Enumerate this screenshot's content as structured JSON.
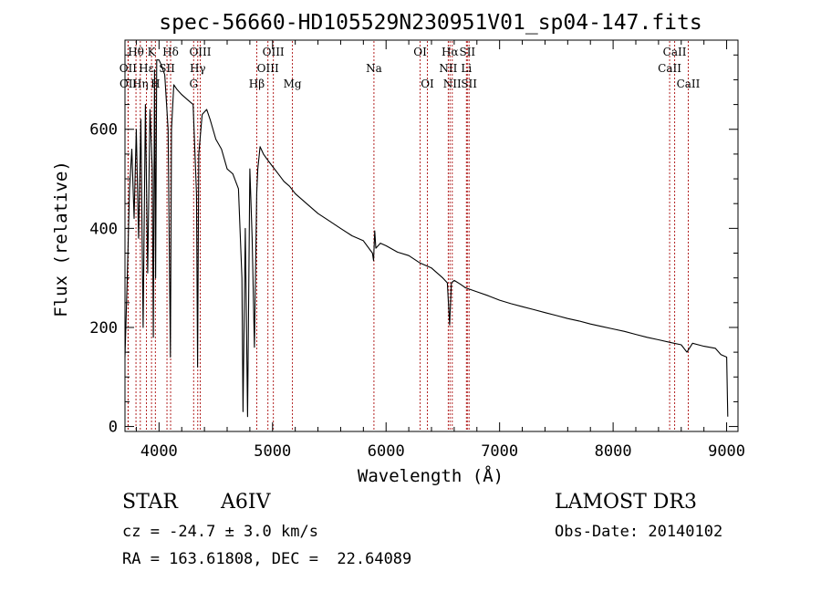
{
  "chart_data": {
    "type": "line",
    "title": "spec-56660-HD105529N230951V01_sp04-147.fits",
    "xlabel": "Wavelength (Å)",
    "ylabel": "Flux (relative)",
    "xlim": [
      3700,
      9100
    ],
    "ylim": [
      -10,
      780
    ],
    "xticks": [
      4000,
      5000,
      6000,
      7000,
      8000,
      9000
    ],
    "yticks": [
      0,
      200,
      400,
      600
    ],
    "grid": false,
    "series": [
      {
        "name": "spectrum",
        "color": "#000000",
        "x": [
          3700,
          3720,
          3740,
          3760,
          3780,
          3800,
          3820,
          3840,
          3860,
          3880,
          3900,
          3920,
          3940,
          3950,
          3960,
          3970,
          3980,
          4000,
          4020,
          4050,
          4080,
          4100,
          4110,
          4130,
          4160,
          4200,
          4250,
          4300,
          4330,
          4340,
          4350,
          4380,
          4420,
          4450,
          4500,
          4550,
          4600,
          4650,
          4700,
          4730,
          4740,
          4760,
          4780,
          4800,
          4820,
          4840,
          4860,
          4870,
          4890,
          4920,
          4950,
          5000,
          5050,
          5100,
          5150,
          5200,
          5300,
          5400,
          5500,
          5600,
          5700,
          5800,
          5880,
          5890,
          5900,
          5910,
          5950,
          6000,
          6100,
          6200,
          6300,
          6400,
          6500,
          6540,
          6560,
          6575,
          6600,
          6650,
          6700,
          6800,
          6900,
          7000,
          7100,
          7200,
          7300,
          7400,
          7500,
          7600,
          7700,
          7800,
          7900,
          8000,
          8100,
          8200,
          8300,
          8400,
          8500,
          8600,
          8650,
          8700,
          8800,
          8900,
          8950,
          9000,
          9010
        ],
        "values": [
          140,
          300,
          480,
          560,
          420,
          600,
          380,
          620,
          200,
          650,
          310,
          640,
          520,
          180,
          720,
          300,
          740,
          740,
          730,
          710,
          600,
          140,
          600,
          690,
          680,
          670,
          660,
          650,
          470,
          120,
          550,
          630,
          640,
          620,
          580,
          560,
          520,
          510,
          480,
          300,
          30,
          400,
          20,
          520,
          380,
          160,
          470,
          520,
          565,
          550,
          540,
          525,
          510,
          495,
          485,
          470,
          450,
          430,
          415,
          400,
          385,
          375,
          350,
          335,
          395,
          360,
          370,
          365,
          352,
          345,
          330,
          320,
          300,
          290,
          205,
          290,
          295,
          288,
          280,
          272,
          264,
          255,
          248,
          242,
          236,
          230,
          224,
          218,
          213,
          207,
          202,
          197,
          192,
          186,
          180,
          175,
          170,
          165,
          150,
          168,
          162,
          158,
          145,
          140,
          20
        ]
      }
    ],
    "lines": [
      {
        "label": "Hθ",
        "x": 3797,
        "row": 1
      },
      {
        "label": "OII",
        "x": 3727,
        "row": 2
      },
      {
        "label": "OII",
        "x": 3729,
        "row": 3
      },
      {
        "label": "Hη",
        "x": 3835,
        "row": 3
      },
      {
        "label": "K",
        "x": 3934,
        "row": 1
      },
      {
        "label": "Hε",
        "x": 3889,
        "row": 2
      },
      {
        "label": "H",
        "x": 3968,
        "row": 3
      },
      {
        "label": "SII",
        "x": 4070,
        "row": 2
      },
      {
        "label": "Hδ",
        "x": 4102,
        "row": 1
      },
      {
        "label": "G",
        "x": 4305,
        "row": 3
      },
      {
        "label": "OIII",
        "x": 4363,
        "row": 1
      },
      {
        "label": "Hγ",
        "x": 4341,
        "row": 2
      },
      {
        "label": "Hβ",
        "x": 4861,
        "row": 3
      },
      {
        "label": "OIII",
        "x": 4959,
        "row": 2
      },
      {
        "label": "OIII",
        "x": 5007,
        "row": 1
      },
      {
        "label": "Mg",
        "x": 5175,
        "row": 3
      },
      {
        "label": "Na",
        "x": 5893,
        "row": 2
      },
      {
        "label": "OI",
        "x": 6300,
        "row": 1
      },
      {
        "label": "OI",
        "x": 6364,
        "row": 3
      },
      {
        "label": "Hα",
        "x": 6563,
        "row": 1
      },
      {
        "label": "NII",
        "x": 6548,
        "row": 2
      },
      {
        "label": "NII",
        "x": 6583,
        "row": 3
      },
      {
        "label": "SII",
        "x": 6716,
        "row": 1
      },
      {
        "label": "SII",
        "x": 6731,
        "row": 3
      },
      {
        "label": "Li",
        "x": 6708,
        "row": 2
      },
      {
        "label": "CaII",
        "x": 8542,
        "row": 1
      },
      {
        "label": "CaII",
        "x": 8498,
        "row": 2
      },
      {
        "label": "CaII",
        "x": 8662,
        "row": 3
      }
    ]
  },
  "footer": {
    "object_type": "STAR",
    "subclass": "A6IV",
    "survey": "LAMOST DR3",
    "cz": "cz = -24.7 ± 3.0 km/s",
    "obs_date": "Obs-Date: 20140102",
    "coords": "RA = 163.61808, DEC =  22.64089"
  },
  "colors": {
    "line_marker": "#b22222",
    "spectrum": "#000000",
    "axis": "#000000"
  }
}
